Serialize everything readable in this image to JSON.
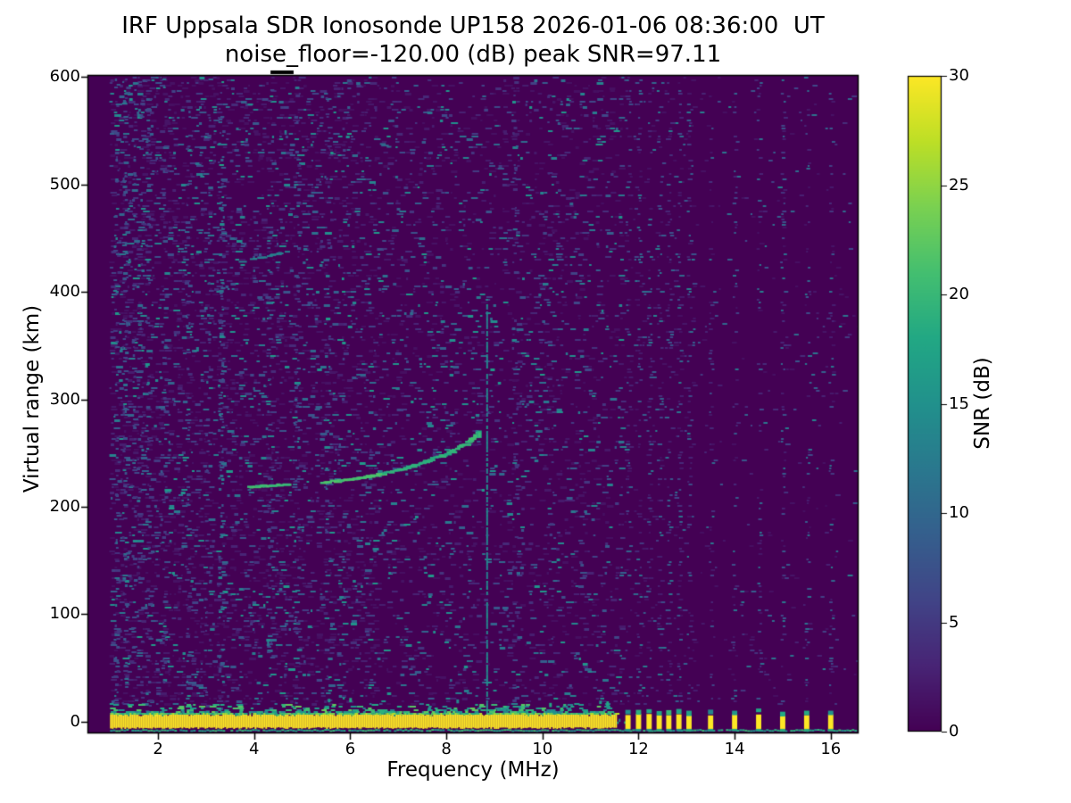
{
  "chart_data": {
    "type": "heatmap",
    "title_line1": "IRF Uppsala SDR Ionosonde UP158 2026-01-06 08:36:00  UT",
    "title_line2": "noise_floor=-120.00 (dB) peak SNR=97.11",
    "xlabel": "Frequency (MHz)",
    "ylabel": "Virtual range (km)",
    "colorbar_label": "SNR (dB)",
    "colormap": "viridis",
    "xlim": [
      0.53,
      16.58
    ],
    "ylim": [
      -10.8,
      601.7
    ],
    "clim": [
      0,
      30
    ],
    "xticks": [
      2,
      4,
      6,
      8,
      10,
      12,
      14,
      16
    ],
    "yticks": [
      0,
      100,
      200,
      300,
      400,
      500,
      600
    ],
    "colorbar_ticks": [
      0,
      5,
      10,
      15,
      20,
      25,
      30
    ],
    "viridis_stops": [
      "#440154",
      "#482475",
      "#414487",
      "#355f8d",
      "#2a788e",
      "#21918c",
      "#22a884",
      "#44bf70",
      "#7ad151",
      "#bddf26",
      "#fde725"
    ],
    "features": {
      "no_data_below_mhz": 1.0,
      "ground_band": {
        "f_start_mhz": 1.0,
        "f_end_mhz": 11.55,
        "km_top": 6.6,
        "km_bottom": -5.8,
        "fringe_km_top": 16,
        "underline_km": -7.5
      },
      "pulses": {
        "freqs_mhz": [
          11.78,
          12.0,
          12.22,
          12.43,
          12.63,
          12.84,
          13.05,
          13.5,
          14.0,
          14.5,
          15.0,
          15.5,
          16.0
        ],
        "km_top": 7.5,
        "km_bottom": -6.6,
        "width_mhz": 0.11
      },
      "echo_trace_segments": [
        {
          "brightness": 0.95,
          "points": [
            [
              3.88,
              218.5
            ],
            [
              4.2,
              219.5
            ],
            [
              4.5,
              220.5
            ],
            [
              4.68,
              221
            ]
          ]
        },
        {
          "brightness": 1.0,
          "points": [
            [
              5.45,
              223
            ],
            [
              5.8,
              224.5
            ],
            [
              6.1,
              226
            ],
            [
              6.4,
              228.5
            ],
            [
              6.7,
              231
            ]
          ]
        },
        {
          "brightness": 0.75,
          "points": [
            [
              6.7,
              231
            ],
            [
              7.0,
              234
            ],
            [
              7.3,
              238
            ],
            [
              7.6,
              242.5
            ],
            [
              7.9,
              247.5
            ],
            [
              8.15,
              252.5
            ]
          ]
        },
        {
          "brightness": 0.9,
          "points": [
            [
              8.15,
              252.5
            ],
            [
              8.35,
              257
            ],
            [
              8.5,
              261.5
            ],
            [
              8.62,
              265.5
            ],
            [
              8.68,
              269
            ]
          ]
        }
      ],
      "echo_tip": {
        "mhz": 8.68,
        "km_low": 264,
        "km_high": 271
      },
      "second_hop_trace": {
        "brightness": 0.4,
        "points": [
          [
            3.7,
            428
          ],
          [
            4.25,
            432.5
          ],
          [
            4.8,
            438
          ]
        ]
      },
      "faint_streak": {
        "brightness": 0.3,
        "points": [
          [
            6.62,
            538
          ],
          [
            7.08,
            532
          ]
        ]
      },
      "rfi_stripes": [
        {
          "mhz": 1.12,
          "s": 0.5
        },
        {
          "mhz": 1.3,
          "s": 0.65
        },
        {
          "mhz": 1.48,
          "s": 0.5
        },
        {
          "mhz": 1.62,
          "s": 0.35
        },
        {
          "mhz": 1.78,
          "s": 0.4
        },
        {
          "mhz": 2.12,
          "s": 0.35
        },
        {
          "mhz": 2.6,
          "s": 0.5
        },
        {
          "mhz": 3.02,
          "s": 0.3
        },
        {
          "mhz": 3.3,
          "s": 0.95
        },
        {
          "mhz": 4.32,
          "s": 0.4
        },
        {
          "mhz": 4.88,
          "s": 0.45
        },
        {
          "mhz": 5.52,
          "s": 0.3
        },
        {
          "mhz": 9.42,
          "s": 0.3
        },
        {
          "mhz": 10.15,
          "s": 0.2
        },
        {
          "mhz": 8.83,
          "s": 0.7,
          "thin": true
        }
      ],
      "top_artifact": {
        "mhz_from": 4.34,
        "mhz_to": 4.82
      }
    }
  }
}
